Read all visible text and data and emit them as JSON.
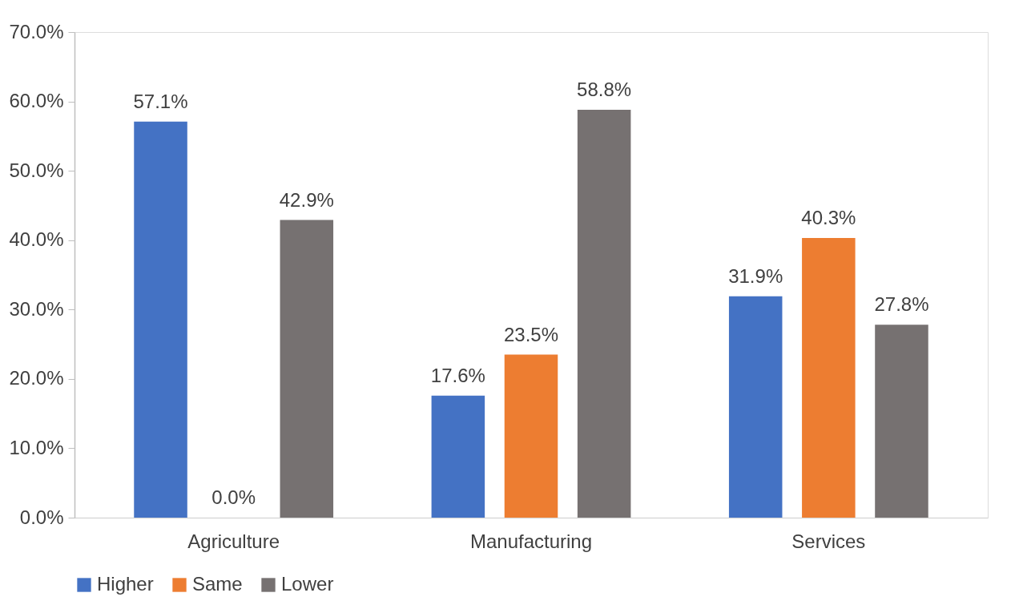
{
  "chart_data": {
    "type": "bar",
    "categories": [
      "Agriculture",
      "Manufacturing",
      "Services"
    ],
    "series": [
      {
        "name": "Higher",
        "color": "#4472c4",
        "values": [
          57.1,
          17.6,
          31.9
        ],
        "value_labels": [
          "57.1%",
          "17.6%",
          "31.9%"
        ]
      },
      {
        "name": "Same",
        "color": "#ed7d31",
        "values": [
          0.0,
          23.5,
          40.3
        ],
        "value_labels": [
          "0.0%",
          "23.5%",
          "40.3%"
        ]
      },
      {
        "name": "Lower",
        "color": "#767171",
        "values": [
          42.9,
          58.8,
          27.8
        ],
        "value_labels": [
          "42.9%",
          "58.8%",
          "27.8%"
        ]
      }
    ],
    "ylim": [
      0,
      70
    ],
    "yticks": [
      {
        "value": 0,
        "label": "0.0%"
      },
      {
        "value": 10,
        "label": "10.0%"
      },
      {
        "value": 20,
        "label": "20.0%"
      },
      {
        "value": 30,
        "label": "30.0%"
      },
      {
        "value": 40,
        "label": "40.0%"
      },
      {
        "value": 50,
        "label": "50.0%"
      },
      {
        "value": 60,
        "label": "60.0%"
      },
      {
        "value": 70,
        "label": "70.0%"
      }
    ],
    "legend": "bottom"
  }
}
